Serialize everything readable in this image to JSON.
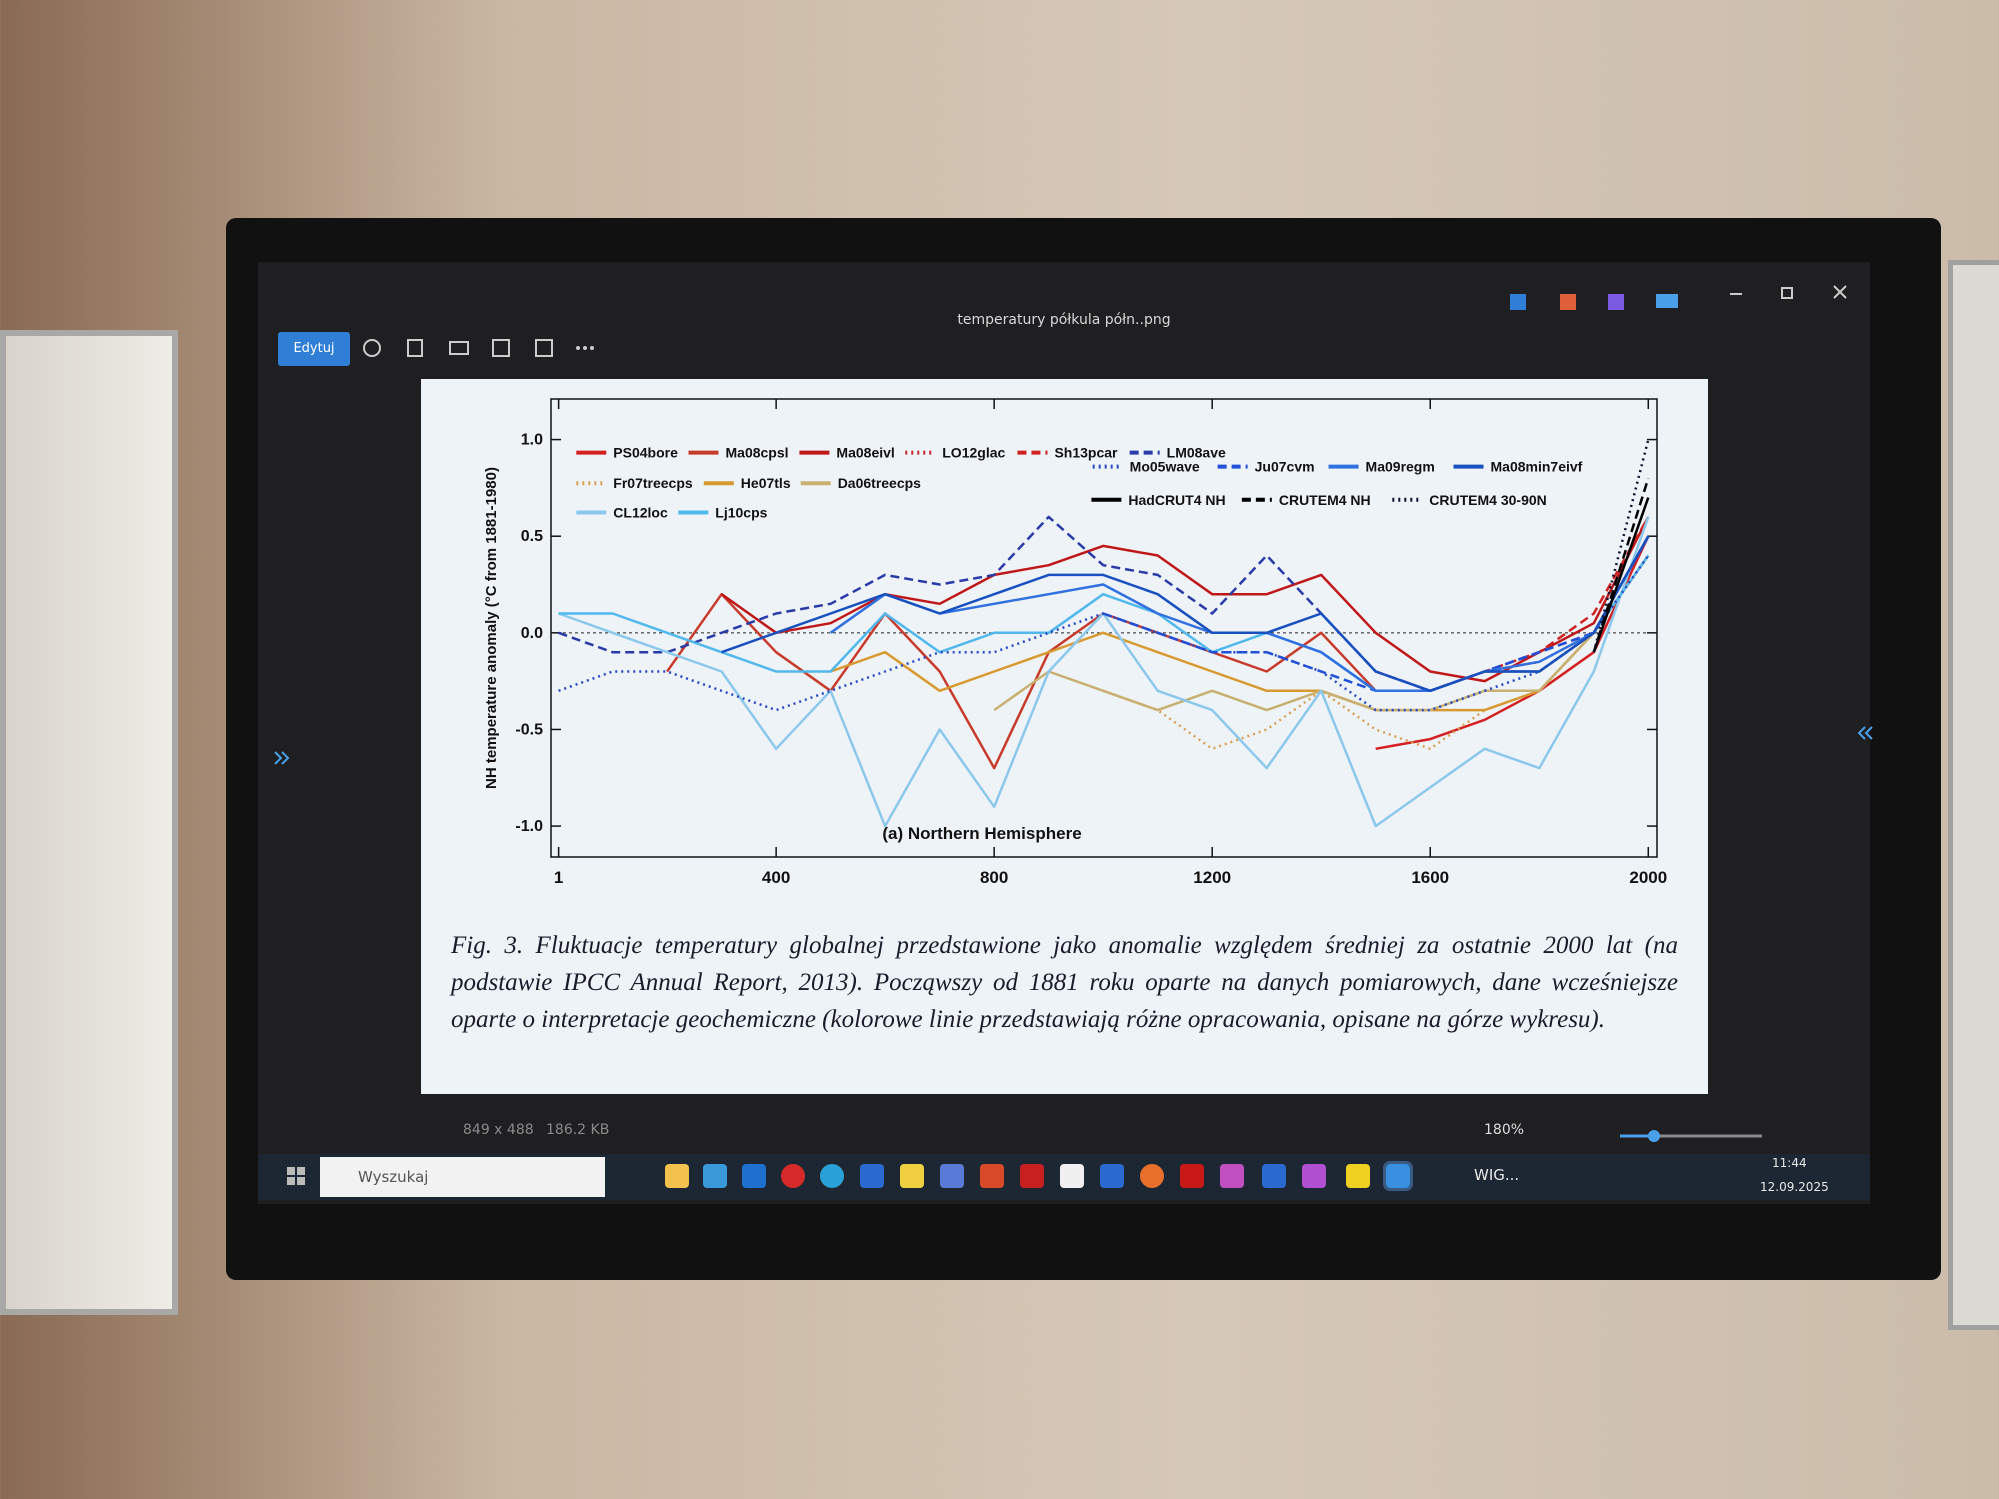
{
  "window": {
    "title": "temperatury półkula półn..png",
    "edit_button": "Edytuj"
  },
  "chart_data": {
    "type": "line",
    "y_label": "NH temperature anomaly (°C from 1881-1980)",
    "annotation": "(a) Northern Hemisphere",
    "x": [
      1,
      100,
      200,
      300,
      400,
      500,
      600,
      700,
      800,
      900,
      1000,
      1100,
      1200,
      1300,
      1400,
      1500,
      1600,
      1700,
      1800,
      1900,
      2000
    ],
    "xlim": [
      -13,
      2016
    ],
    "xticks": [
      1,
      400,
      800,
      1200,
      1600,
      2000
    ],
    "ylim": [
      -1.16,
      1.21
    ],
    "yticks": [
      {
        "value": 1.0,
        "label": "1.0"
      },
      {
        "value": 0.5,
        "label": "0.5"
      },
      {
        "value": 0.0,
        "label": "0.0"
      },
      {
        "value": -0.5,
        "label": "-0.5"
      },
      {
        "value": -1.0,
        "label": "-1.0"
      }
    ],
    "series": [
      {
        "name": "PS04bore",
        "color": "#d42020",
        "style": "solid",
        "values": [
          null,
          null,
          null,
          null,
          null,
          null,
          null,
          null,
          null,
          null,
          null,
          null,
          null,
          null,
          null,
          -0.6,
          -0.55,
          -0.45,
          -0.3,
          -0.1,
          0.5
        ]
      },
      {
        "name": "Ma08cpsl",
        "color": "#c83a2a",
        "style": "solid",
        "values": [
          null,
          null,
          -0.2,
          0.2,
          -0.1,
          -0.3,
          0.1,
          -0.2,
          -0.7,
          -0.1,
          0.1,
          0.0,
          -0.1,
          -0.2,
          0.0,
          -0.3,
          -0.3,
          -0.2,
          -0.2,
          0.0,
          0.5
        ]
      },
      {
        "name": "Ma08eivl",
        "color": "#c01818",
        "style": "solid",
        "values": [
          null,
          null,
          null,
          0.2,
          0.0,
          0.05,
          0.2,
          0.15,
          0.3,
          0.35,
          0.45,
          0.4,
          0.2,
          0.2,
          0.3,
          0.0,
          -0.2,
          -0.25,
          -0.1,
          0.05,
          0.6
        ]
      },
      {
        "name": "LO12glac",
        "color": "#c82828",
        "style": "dotted",
        "values": [
          null,
          null,
          null,
          null,
          null,
          null,
          null,
          null,
          null,
          null,
          null,
          null,
          null,
          null,
          null,
          null,
          -0.3,
          -0.2,
          -0.15,
          0.0,
          0.4
        ]
      },
      {
        "name": "Sh13pcar",
        "color": "#d02020",
        "style": "dashed",
        "values": [
          null,
          null,
          null,
          null,
          null,
          null,
          null,
          null,
          null,
          null,
          null,
          null,
          null,
          null,
          null,
          -0.2,
          -0.3,
          -0.2,
          -0.1,
          0.1,
          0.6
        ]
      },
      {
        "name": "LM08ave",
        "color": "#2a3aa8",
        "style": "dashed",
        "values": [
          0.0,
          -0.1,
          -0.1,
          0.0,
          0.1,
          0.15,
          0.3,
          0.25,
          0.3,
          0.6,
          0.35,
          0.3,
          0.1,
          0.4,
          0.1,
          -0.2,
          -0.3,
          -0.2,
          -0.1,
          0.0,
          0.5
        ]
      },
      {
        "name": "Fr07treecps",
        "color": "#d8a050",
        "style": "dotted",
        "values": [
          null,
          null,
          null,
          null,
          null,
          null,
          null,
          null,
          null,
          null,
          -0.3,
          -0.4,
          -0.6,
          -0.5,
          -0.3,
          -0.5,
          -0.6,
          -0.4,
          -0.3,
          0.0,
          0.4
        ]
      },
      {
        "name": "He07tls",
        "color": "#d89a30",
        "style": "solid",
        "values": [
          null,
          null,
          null,
          null,
          null,
          -0.2,
          -0.1,
          -0.3,
          -0.2,
          -0.1,
          0.0,
          -0.1,
          -0.2,
          -0.3,
          -0.3,
          -0.4,
          -0.4,
          -0.4,
          -0.3,
          0.0,
          0.4
        ]
      },
      {
        "name": "Da06treecps",
        "color": "#c8b070",
        "style": "solid",
        "values": [
          null,
          null,
          null,
          null,
          null,
          null,
          null,
          null,
          -0.4,
          -0.2,
          -0.3,
          -0.4,
          -0.3,
          -0.4,
          -0.3,
          -0.4,
          -0.4,
          -0.3,
          -0.3,
          0.0,
          0.4
        ]
      },
      {
        "name": "CL12loc",
        "color": "#8cc8ec",
        "style": "solid",
        "values": [
          0.1,
          0.0,
          -0.1,
          -0.2,
          -0.6,
          -0.3,
          -1.0,
          -0.5,
          -0.9,
          -0.2,
          0.1,
          -0.3,
          -0.4,
          -0.7,
          -0.3,
          -1.0,
          -0.8,
          -0.6,
          -0.7,
          -0.2,
          0.6
        ]
      },
      {
        "name": "Lj10cps",
        "color": "#50b8ec",
        "style": "solid",
        "values": [
          0.1,
          0.1,
          0.0,
          -0.1,
          -0.2,
          -0.2,
          0.1,
          -0.1,
          0.0,
          0.0,
          0.2,
          0.1,
          -0.1,
          0.0,
          -0.1,
          -0.3,
          -0.3,
          -0.2,
          -0.2,
          0.0,
          0.4
        ]
      },
      {
        "name": "Mo05wave",
        "color": "#2848c8",
        "style": "dotted",
        "values": [
          -0.3,
          -0.2,
          -0.2,
          -0.3,
          -0.4,
          -0.3,
          -0.2,
          -0.1,
          -0.1,
          0.0,
          0.1,
          0.0,
          -0.1,
          -0.1,
          -0.2,
          -0.4,
          -0.4,
          -0.3,
          -0.2,
          0.0,
          0.4
        ]
      },
      {
        "name": "Ju07cvm",
        "color": "#2050d8",
        "style": "dashed",
        "values": [
          null,
          null,
          null,
          null,
          null,
          null,
          null,
          null,
          null,
          null,
          0.1,
          0.0,
          -0.1,
          -0.1,
          -0.2,
          -0.3,
          -0.3,
          -0.2,
          -0.1,
          0.0,
          0.5
        ]
      },
      {
        "name": "Ma09regm",
        "color": "#3070e0",
        "style": "solid",
        "values": [
          null,
          null,
          null,
          null,
          null,
          0.0,
          0.2,
          0.1,
          0.15,
          0.2,
          0.25,
          0.1,
          0.0,
          0.0,
          -0.1,
          -0.3,
          -0.3,
          -0.2,
          -0.15,
          0.0,
          0.5
        ]
      },
      {
        "name": "Ma08min7eivf",
        "color": "#1850c0",
        "style": "solid",
        "values": [
          null,
          null,
          null,
          -0.1,
          0.0,
          0.1,
          0.2,
          0.1,
          0.2,
          0.3,
          0.3,
          0.2,
          0.0,
          0.0,
          0.1,
          -0.2,
          -0.3,
          -0.2,
          -0.2,
          0.0,
          0.5
        ]
      },
      {
        "name": "HadCRUT4 NH",
        "color": "#000000",
        "style": "solid",
        "values": [
          null,
          null,
          null,
          null,
          null,
          null,
          null,
          null,
          null,
          null,
          null,
          null,
          null,
          null,
          null,
          null,
          null,
          null,
          null,
          -0.1,
          0.7
        ]
      },
      {
        "name": "CRUTEM4 NH",
        "color": "#000000",
        "style": "dashed",
        "values": [
          null,
          null,
          null,
          null,
          null,
          null,
          null,
          null,
          null,
          null,
          null,
          null,
          null,
          null,
          null,
          null,
          null,
          null,
          null,
          -0.1,
          0.8
        ]
      },
      {
        "name": "CRUTEM4 30-90N",
        "color": "#101030",
        "style": "dotted",
        "values": [
          null,
          null,
          null,
          null,
          null,
          null,
          null,
          null,
          null,
          null,
          null,
          null,
          null,
          null,
          null,
          null,
          null,
          null,
          null,
          -0.1,
          1.0
        ]
      }
    ]
  },
  "caption": "Fig. 3. Fluktuacje temperatury globalnej przedstawione jako anomalie względem średniej za ostatnie 2000 lat (na podstawie IPCC Annual Report, 2013). Począwszy od 1881 roku oparte na danych pomiarowych, dane wcześniejsze oparte o interpretacje geochemiczne (kolorowe linie przedstawiają różne opracowania, opisane na górze wykresu).",
  "status_bar": {
    "dimensions": "849 x 488",
    "file_size": "186.2 KB",
    "zoom": "180%"
  },
  "taskbar": {
    "search": "Wyszukaj",
    "app_label": "WIG...",
    "time": "11:44",
    "date": "12.09.2025"
  }
}
